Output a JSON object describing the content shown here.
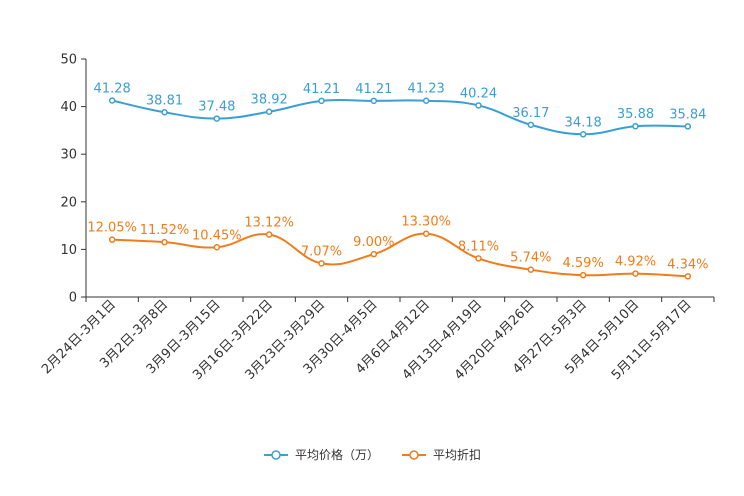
{
  "chart_data": {
    "type": "line",
    "title": "",
    "xlabel": "",
    "ylabel": "",
    "ylim": [
      0,
      50
    ],
    "yticks": [
      0,
      10,
      20,
      30,
      40,
      50
    ],
    "grid": false,
    "legend_position": "bottom-center",
    "categories": [
      "2月24日-3月1日",
      "3月2日-3月8日",
      "3月9日-3月15日",
      "3月16日-3月22日",
      "3月23日-3月29日",
      "3月30日-4月5日",
      "4月6日-4月12日",
      "4月13日-4月19日",
      "4月20日-4月26日",
      "4月27日-5月3日",
      "5月4日-5月10日",
      "5月11日-5月17日"
    ],
    "series": [
      {
        "name": "平均价格（万）",
        "color": "#3a9fd3",
        "values": [
          41.28,
          38.81,
          37.48,
          38.92,
          41.21,
          41.21,
          41.23,
          40.24,
          36.17,
          34.18,
          35.88,
          35.84
        ],
        "labels": [
          "41.28",
          "38.81",
          "37.48",
          "38.92",
          "41.21",
          "41.21",
          "41.23",
          "40.24",
          "36.17",
          "34.18",
          "35.88",
          "35.84"
        ]
      },
      {
        "name": "平均折扣",
        "color": "#f07c1c",
        "values": [
          12.05,
          11.52,
          10.45,
          13.12,
          7.07,
          9.0,
          13.3,
          8.11,
          5.74,
          4.59,
          4.92,
          4.34
        ],
        "labels": [
          "12.05%",
          "11.52%",
          "10.45%",
          "13.12%",
          "7.07%",
          "9.00%",
          "13.30%",
          "8.11%",
          "5.74%",
          "4.59%",
          "4.92%",
          "4.34%"
        ]
      }
    ]
  }
}
